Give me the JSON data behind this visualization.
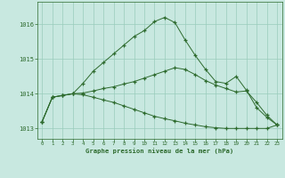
{
  "title": "Graphe pression niveau de la mer (hPa)",
  "x_labels": [
    0,
    1,
    2,
    3,
    4,
    5,
    6,
    7,
    8,
    9,
    10,
    11,
    12,
    13,
    14,
    15,
    16,
    17,
    18,
    19,
    20,
    21,
    22,
    23
  ],
  "ylim": [
    1012.7,
    1016.65
  ],
  "yticks": [
    1013,
    1014,
    1015,
    1016
  ],
  "line_up": [
    1013.2,
    1013.9,
    1013.95,
    1014.0,
    1014.3,
    1014.65,
    1014.9,
    1015.15,
    1015.4,
    1015.65,
    1015.82,
    1016.08,
    1016.2,
    1016.05,
    1015.55,
    1015.1,
    1014.7,
    1014.35,
    1014.3,
    1014.5,
    1014.1,
    1013.6,
    1013.32,
    1013.1
  ],
  "line_mid": [
    1013.2,
    1013.9,
    1013.95,
    1014.0,
    1014.02,
    1014.08,
    1014.15,
    1014.2,
    1014.28,
    1014.35,
    1014.45,
    1014.55,
    1014.65,
    1014.75,
    1014.7,
    1014.55,
    1014.38,
    1014.25,
    1014.15,
    1014.05,
    1014.08,
    1013.75,
    1013.38,
    1013.1
  ],
  "line_dn": [
    1013.2,
    1013.9,
    1013.95,
    1014.0,
    1013.97,
    1013.9,
    1013.82,
    1013.75,
    1013.65,
    1013.55,
    1013.45,
    1013.35,
    1013.28,
    1013.22,
    1013.15,
    1013.1,
    1013.05,
    1013.02,
    1013.0,
    1013.0,
    1013.0,
    1013.0,
    1013.0,
    1013.1
  ],
  "line_color": "#2d6a2d",
  "bg_color": "#c8e8e0",
  "grid_color": "#99ccbb"
}
